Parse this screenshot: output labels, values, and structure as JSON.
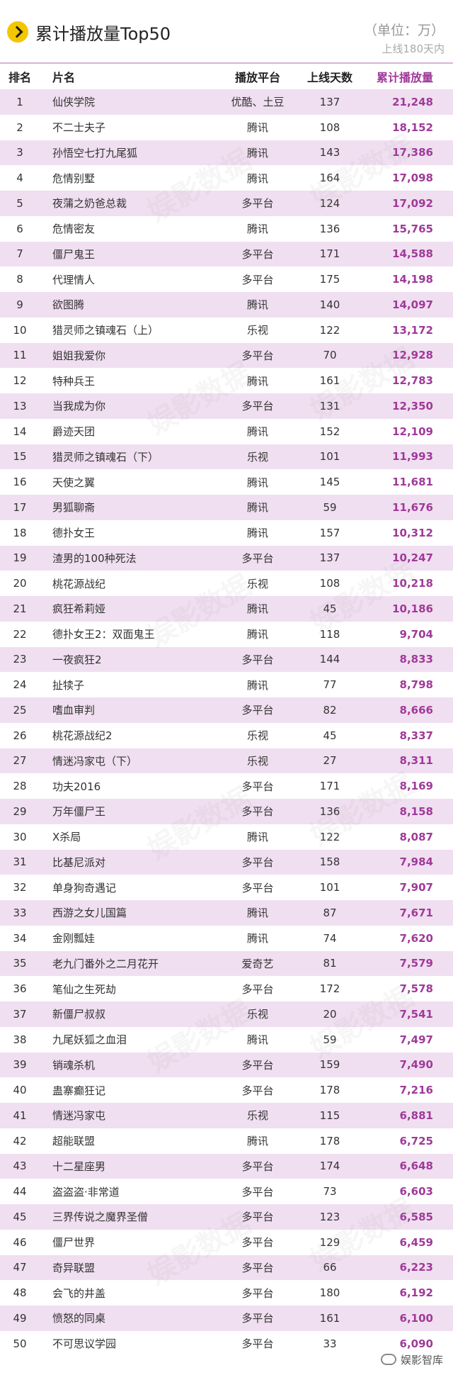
{
  "header": {
    "title": "累计播放量Top50",
    "unit": "（单位：万）",
    "note": "上线180天内"
  },
  "columns": {
    "rank": "排名",
    "name": "片名",
    "platform": "播放平台",
    "days": "上线天数",
    "plays": "累计播放量"
  },
  "rows": [
    {
      "rank": "1",
      "name": "仙侠学院",
      "platform": "优酷、土豆",
      "days": "137",
      "plays": "21,248"
    },
    {
      "rank": "2",
      "name": "不二士夫子",
      "platform": "腾讯",
      "days": "108",
      "plays": "18,152"
    },
    {
      "rank": "3",
      "name": "孙悟空七打九尾狐",
      "platform": "腾讯",
      "days": "143",
      "plays": "17,386"
    },
    {
      "rank": "4",
      "name": "危情别墅",
      "platform": "腾讯",
      "days": "164",
      "plays": "17,098"
    },
    {
      "rank": "5",
      "name": "夜蒲之奶爸总裁",
      "platform": "多平台",
      "days": "124",
      "plays": "17,092"
    },
    {
      "rank": "6",
      "name": "危情密友",
      "platform": "腾讯",
      "days": "136",
      "plays": "15,765"
    },
    {
      "rank": "7",
      "name": "僵尸鬼王",
      "platform": "多平台",
      "days": "171",
      "plays": "14,588"
    },
    {
      "rank": "8",
      "name": "代理情人",
      "platform": "多平台",
      "days": "175",
      "plays": "14,198"
    },
    {
      "rank": "9",
      "name": "欲图腾",
      "platform": "腾讯",
      "days": "140",
      "plays": "14,097"
    },
    {
      "rank": "10",
      "name": "猎灵师之镇魂石（上）",
      "platform": "乐视",
      "days": "122",
      "plays": "13,172"
    },
    {
      "rank": "11",
      "name": "姐姐我爱你",
      "platform": "多平台",
      "days": "70",
      "plays": "12,928"
    },
    {
      "rank": "12",
      "name": "特种兵王",
      "platform": "腾讯",
      "days": "161",
      "plays": "12,783"
    },
    {
      "rank": "13",
      "name": "当我成为你",
      "platform": "多平台",
      "days": "131",
      "plays": "12,350"
    },
    {
      "rank": "14",
      "name": "爵迹天团",
      "platform": "腾讯",
      "days": "152",
      "plays": "12,109"
    },
    {
      "rank": "15",
      "name": "猎灵师之镇魂石（下）",
      "platform": "乐视",
      "days": "101",
      "plays": "11,993"
    },
    {
      "rank": "16",
      "name": "天使之翼",
      "platform": "腾讯",
      "days": "145",
      "plays": "11,681"
    },
    {
      "rank": "17",
      "name": "男狐聊斋",
      "platform": "腾讯",
      "days": "59",
      "plays": "11,676"
    },
    {
      "rank": "18",
      "name": "德扑女王",
      "platform": "腾讯",
      "days": "157",
      "plays": "10,312"
    },
    {
      "rank": "19",
      "name": "渣男的100种死法",
      "platform": "多平台",
      "days": "137",
      "plays": "10,247"
    },
    {
      "rank": "20",
      "name": "桃花源战纪",
      "platform": "乐视",
      "days": "108",
      "plays": "10,218"
    },
    {
      "rank": "21",
      "name": "疯狂希莉娅",
      "platform": "腾讯",
      "days": "45",
      "plays": "10,186"
    },
    {
      "rank": "22",
      "name": "德扑女王2：双面鬼王",
      "platform": "腾讯",
      "days": "118",
      "plays": "9,704"
    },
    {
      "rank": "23",
      "name": "一夜疯狂2",
      "platform": "多平台",
      "days": "144",
      "plays": "8,833"
    },
    {
      "rank": "24",
      "name": "扯犊子",
      "platform": "腾讯",
      "days": "77",
      "plays": "8,798"
    },
    {
      "rank": "25",
      "name": "嗜血审判",
      "platform": "多平台",
      "days": "82",
      "plays": "8,666"
    },
    {
      "rank": "26",
      "name": "桃花源战纪2",
      "platform": "乐视",
      "days": "45",
      "plays": "8,337"
    },
    {
      "rank": "27",
      "name": "情迷冯家屯（下）",
      "platform": "乐视",
      "days": "27",
      "plays": "8,311"
    },
    {
      "rank": "28",
      "name": "功夫2016",
      "platform": "多平台",
      "days": "171",
      "plays": "8,169"
    },
    {
      "rank": "29",
      "name": "万年僵尸王",
      "platform": "多平台",
      "days": "136",
      "plays": "8,158"
    },
    {
      "rank": "30",
      "name": "X杀局",
      "platform": "腾讯",
      "days": "122",
      "plays": "8,087"
    },
    {
      "rank": "31",
      "name": "比基尼派对",
      "platform": "多平台",
      "days": "158",
      "plays": "7,984"
    },
    {
      "rank": "32",
      "name": "单身狗奇遇记",
      "platform": "多平台",
      "days": "101",
      "plays": "7,907"
    },
    {
      "rank": "33",
      "name": "西游之女儿国篇",
      "platform": "腾讯",
      "days": "87",
      "plays": "7,671"
    },
    {
      "rank": "34",
      "name": "金刚瓢娃",
      "platform": "腾讯",
      "days": "74",
      "plays": "7,620"
    },
    {
      "rank": "35",
      "name": "老九门番外之二月花开",
      "platform": "爱奇艺",
      "days": "81",
      "plays": "7,579"
    },
    {
      "rank": "36",
      "name": "笔仙之生死劫",
      "platform": "多平台",
      "days": "172",
      "plays": "7,578"
    },
    {
      "rank": "37",
      "name": "新僵尸叔叔",
      "platform": "乐视",
      "days": "20",
      "plays": "7,541"
    },
    {
      "rank": "38",
      "name": "九尾妖狐之血泪",
      "platform": "腾讯",
      "days": "59",
      "plays": "7,497"
    },
    {
      "rank": "39",
      "name": "销魂杀机",
      "platform": "多平台",
      "days": "159",
      "plays": "7,490"
    },
    {
      "rank": "40",
      "name": "蛊寨癫狂记",
      "platform": "多平台",
      "days": "178",
      "plays": "7,216"
    },
    {
      "rank": "41",
      "name": "情迷冯家屯",
      "platform": "乐视",
      "days": "115",
      "plays": "6,881"
    },
    {
      "rank": "42",
      "name": "超能联盟",
      "platform": "腾讯",
      "days": "178",
      "plays": "6,725"
    },
    {
      "rank": "43",
      "name": "十二星座男",
      "platform": "多平台",
      "days": "174",
      "plays": "6,648"
    },
    {
      "rank": "44",
      "name": "盗盗盗·非常道",
      "platform": "多平台",
      "days": "73",
      "plays": "6,603"
    },
    {
      "rank": "45",
      "name": "三界传说之魔界圣僧",
      "platform": "多平台",
      "days": "123",
      "plays": "6,585"
    },
    {
      "rank": "46",
      "name": "僵尸世界",
      "platform": "多平台",
      "days": "129",
      "plays": "6,459"
    },
    {
      "rank": "47",
      "name": "奇异联盟",
      "platform": "多平台",
      "days": "66",
      "plays": "6,223"
    },
    {
      "rank": "48",
      "name": "会飞的井盖",
      "platform": "多平台",
      "days": "180",
      "plays": "6,192"
    },
    {
      "rank": "49",
      "name": "愤怒的同桌",
      "platform": "多平台",
      "days": "161",
      "plays": "6,100"
    },
    {
      "rank": "50",
      "name": "不可思议学园",
      "platform": "多平台",
      "days": "33",
      "plays": "6,090"
    }
  ],
  "watermark": "娱影数据",
  "footer": {
    "brand": "娱影智库",
    "brand_icon": "wechat-icon"
  },
  "colors": {
    "accent": "#a0399a",
    "row_band": "#f0dff0",
    "badge": "#f2c600"
  }
}
